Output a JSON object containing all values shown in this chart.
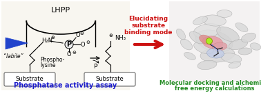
{
  "background_color": "#ffffff",
  "left_label": "Phosphatase activity assay",
  "left_label_color": "#1a1acc",
  "right_label_line1": "Molecular docking and alchemical",
  "right_label_line2": "free energy calculations",
  "right_label_color": "#228B22",
  "center_title_line1": "Elucidating",
  "center_title_line2": "substrate",
  "center_title_line3": "binding mode",
  "center_title_color": "#cc1111",
  "lhpp_label": "LHPP",
  "labile_label": "“labile”",
  "phospholysine_label1": "Phospho-",
  "phospholysine_label2": "lysine",
  "substrate_label": "Substrate",
  "pi_label": "Pᴵ",
  "nh3_label": "NH₃",
  "h2n_label": "H₂N",
  "oplus": "⊕",
  "ominus": "⊖",
  "arrow_color": "#cc1111",
  "blue_arrow_color": "#2244cc",
  "panel_bg": "#f8f6f0"
}
